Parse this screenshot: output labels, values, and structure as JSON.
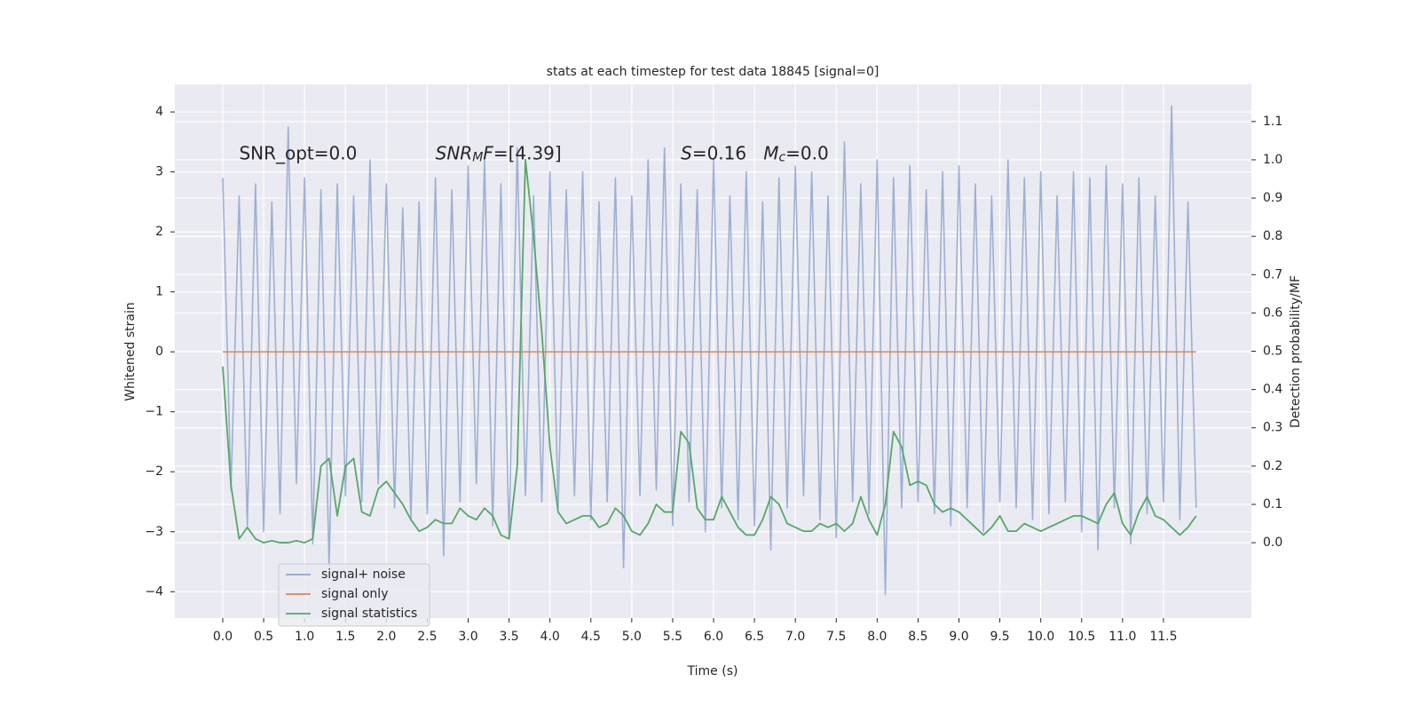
{
  "chart_data": {
    "type": "line",
    "title": "stats at each timestep for test data 18845 [signal=0]",
    "xlabel": "Time (s)",
    "ylabel": "Whitened strain",
    "y2label": "Detection probability/MF",
    "x": [
      0,
      0.1,
      0.2,
      0.3,
      0.4,
      0.5,
      0.6,
      0.7,
      0.8,
      0.9,
      1.0,
      1.1,
      1.2,
      1.3,
      1.4,
      1.5,
      1.6,
      1.7,
      1.8,
      1.9,
      2.0,
      2.1,
      2.2,
      2.3,
      2.4,
      2.5,
      2.6,
      2.7,
      2.8,
      2.9,
      3.0,
      3.1,
      3.2,
      3.3,
      3.4,
      3.5,
      3.6,
      3.7,
      3.8,
      3.9,
      4.0,
      4.1,
      4.2,
      4.3,
      4.4,
      4.5,
      4.6,
      4.7,
      4.8,
      4.9,
      5.0,
      5.1,
      5.2,
      5.3,
      5.4,
      5.5,
      5.6,
      5.7,
      5.8,
      5.9,
      6.0,
      6.1,
      6.2,
      6.3,
      6.4,
      6.5,
      6.6,
      6.7,
      6.8,
      6.9,
      7.0,
      7.1,
      7.2,
      7.3,
      7.4,
      7.5,
      7.6,
      7.7,
      7.8,
      7.9,
      8.0,
      8.1,
      8.2,
      8.3,
      8.4,
      8.5,
      8.6,
      8.7,
      8.8,
      8.9,
      9.0,
      9.1,
      9.2,
      9.3,
      9.4,
      9.5,
      9.6,
      9.7,
      9.8,
      9.9,
      10.0,
      10.1,
      10.2,
      10.3,
      10.4,
      10.5,
      10.6,
      10.7,
      10.8,
      10.9,
      11.0,
      11.1,
      11.2,
      11.3,
      11.4,
      11.5,
      11.6,
      11.7,
      11.8,
      11.9
    ],
    "series": [
      {
        "name": "signal+ noise",
        "color": "#8fa4cf",
        "values": [
          2.9,
          -2.3,
          2.6,
          -2.9,
          2.8,
          -3.0,
          2.5,
          -2.7,
          3.75,
          -2.2,
          2.9,
          -3.2,
          2.7,
          -3.6,
          2.8,
          -2.4,
          2.6,
          -2.5,
          3.2,
          -2.2,
          2.8,
          -2.6,
          2.4,
          -2.8,
          2.5,
          -2.7,
          2.9,
          -3.4,
          2.7,
          -2.5,
          3.1,
          -2.2,
          3.2,
          -2.9,
          2.8,
          -3.1,
          3.4,
          -2.4,
          2.6,
          -2.5,
          3.0,
          -2.6,
          2.7,
          -2.4,
          3.0,
          -2.8,
          2.5,
          -2.5,
          2.9,
          -3.6,
          2.6,
          -2.4,
          3.2,
          -2.3,
          3.4,
          -2.9,
          2.8,
          -2.5,
          2.7,
          -3.0,
          3.2,
          -2.6,
          2.6,
          -2.8,
          3.0,
          -2.9,
          2.5,
          -3.3,
          2.9,
          -2.6,
          3.1,
          -2.4,
          3.0,
          -2.8,
          2.6,
          -3.1,
          3.5,
          -2.5,
          2.8,
          -2.7,
          3.2,
          -4.05,
          2.9,
          -2.6,
          3.1,
          -2.5,
          2.7,
          -2.7,
          3.0,
          -2.9,
          3.1,
          -2.6,
          2.8,
          -3.0,
          2.6,
          -2.5,
          3.2,
          -2.6,
          2.9,
          -2.8,
          3.0,
          -2.7,
          2.6,
          -2.5,
          3.0,
          -3.0,
          2.9,
          -3.3,
          3.1,
          -2.6,
          2.8,
          -3.2,
          2.9,
          -2.7,
          2.6,
          -2.5,
          4.1,
          -2.8,
          2.5,
          -2.6
        ]
      },
      {
        "name": "signal only",
        "color": "#dd8452",
        "values": [
          0,
          0,
          0,
          0,
          0,
          0,
          0,
          0,
          0,
          0,
          0,
          0,
          0,
          0,
          0,
          0,
          0,
          0,
          0,
          0,
          0,
          0,
          0,
          0,
          0,
          0,
          0,
          0,
          0,
          0,
          0,
          0,
          0,
          0,
          0,
          0,
          0,
          0,
          0,
          0,
          0,
          0,
          0,
          0,
          0,
          0,
          0,
          0,
          0,
          0,
          0,
          0,
          0,
          0,
          0,
          0,
          0,
          0,
          0,
          0,
          0,
          0,
          0,
          0,
          0,
          0,
          0,
          0,
          0,
          0,
          0,
          0,
          0,
          0,
          0,
          0,
          0,
          0,
          0,
          0,
          0,
          0,
          0,
          0,
          0,
          0,
          0,
          0,
          0,
          0,
          0,
          0,
          0,
          0,
          0,
          0,
          0,
          0,
          0,
          0,
          0,
          0,
          0,
          0,
          0,
          0,
          0,
          0,
          0,
          0,
          0,
          0,
          0,
          0,
          0,
          0,
          0,
          0,
          0,
          0
        ]
      },
      {
        "name": "signal statistics",
        "color": "#55a868",
        "axis": "y2",
        "values": [
          0.46,
          0.15,
          0.01,
          0.04,
          0.01,
          0.0,
          0.005,
          0.0,
          0.0,
          0.005,
          0.0,
          0.01,
          0.2,
          0.22,
          0.07,
          0.2,
          0.22,
          0.08,
          0.07,
          0.14,
          0.16,
          0.13,
          0.1,
          0.06,
          0.03,
          0.04,
          0.06,
          0.05,
          0.05,
          0.09,
          0.07,
          0.06,
          0.09,
          0.07,
          0.02,
          0.01,
          0.2,
          1.0,
          0.8,
          0.55,
          0.25,
          0.08,
          0.05,
          0.06,
          0.07,
          0.07,
          0.04,
          0.05,
          0.09,
          0.07,
          0.03,
          0.02,
          0.05,
          0.1,
          0.08,
          0.08,
          0.29,
          0.26,
          0.09,
          0.06,
          0.06,
          0.12,
          0.08,
          0.04,
          0.02,
          0.02,
          0.06,
          0.12,
          0.1,
          0.05,
          0.04,
          0.03,
          0.03,
          0.05,
          0.04,
          0.05,
          0.03,
          0.05,
          0.12,
          0.06,
          0.02,
          0.1,
          0.29,
          0.25,
          0.15,
          0.16,
          0.15,
          0.1,
          0.08,
          0.09,
          0.08,
          0.06,
          0.04,
          0.02,
          0.04,
          0.07,
          0.03,
          0.03,
          0.05,
          0.04,
          0.03,
          0.04,
          0.05,
          0.06,
          0.07,
          0.07,
          0.06,
          0.05,
          0.1,
          0.13,
          0.05,
          0.02,
          0.08,
          0.12,
          0.07,
          0.06,
          0.04,
          0.02,
          0.04,
          0.07
        ]
      }
    ],
    "xlim": [
      -0.586,
      12.575
    ],
    "xticks": [
      {
        "value": 0,
        "label": "0.0"
      },
      0.5,
      {
        "value": 1,
        "label": "1.0"
      },
      1.5,
      {
        "value": 2,
        "label": "2.0"
      },
      2.5,
      {
        "value": 3,
        "label": "3.0"
      },
      3.5,
      {
        "value": 4,
        "label": "4.0"
      },
      4.5,
      {
        "value": 5,
        "label": "5.0"
      },
      5.5,
      {
        "value": 6,
        "label": "6.0"
      },
      6.5,
      {
        "value": 7,
        "label": "7.0"
      },
      7.5,
      {
        "value": 8,
        "label": "8.0"
      },
      8.5,
      {
        "value": 9,
        "label": "9.0"
      },
      9.5,
      {
        "value": 10,
        "label": "10.0"
      },
      10.5,
      {
        "value": 11,
        "label": "11.0"
      },
      11.5
    ],
    "ylim": [
      -4.44,
      4.46
    ],
    "yticks": [
      {
        "value": -4,
        "label": "−4"
      },
      {
        "value": -3,
        "label": "−3"
      },
      {
        "value": -2,
        "label": "−2"
      },
      {
        "value": -1,
        "label": "−1"
      },
      0,
      1,
      2,
      3,
      4
    ],
    "y2lim": [
      -0.197,
      1.197
    ],
    "y2ticks": [
      {
        "value": 0,
        "label": "0.0"
      },
      0.1,
      0.2,
      0.3,
      0.4,
      0.5,
      0.6,
      0.7,
      0.8,
      0.9,
      {
        "value": 1,
        "label": "1.0"
      },
      1.1
    ],
    "grid": true,
    "annotations": [
      {
        "x": 0.2,
        "y": 3.3,
        "segments": [
          {
            "text": "SNR_opt=0.0",
            "style": "normal"
          }
        ]
      },
      {
        "x": 2.6,
        "y": 3.3,
        "segments": [
          {
            "text": "SNR",
            "style": "italic"
          },
          {
            "text": "M",
            "style": "italic-sub"
          },
          {
            "text": "F",
            "style": "italic"
          },
          {
            "text": "=[4.39]",
            "style": "normal"
          }
        ]
      },
      {
        "x": 5.6,
        "y": 3.3,
        "segments": [
          {
            "text": "S",
            "style": "italic"
          },
          {
            "text": "=0.16   ",
            "style": "normal"
          },
          {
            "text": "M",
            "style": "italic"
          },
          {
            "text": "c",
            "style": "italic-sub"
          },
          {
            "text": "=0.0",
            "style": "normal"
          }
        ]
      }
    ]
  }
}
